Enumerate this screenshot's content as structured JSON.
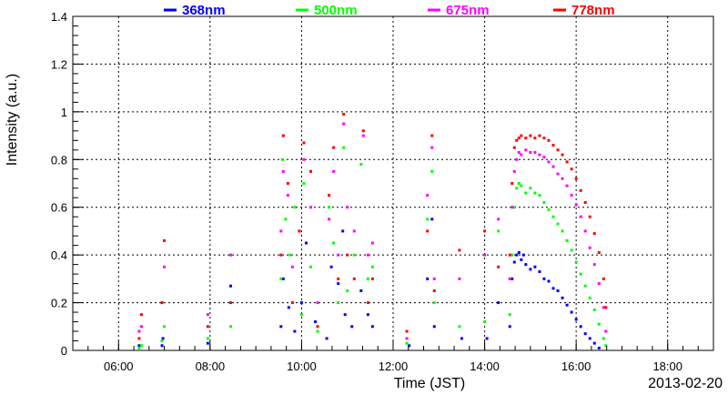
{
  "chart_data": {
    "type": "scatter",
    "title": "",
    "xlabel": "Time (JST)",
    "ylabel": "Intensity (a.u.)",
    "date_label": "2013-02-20",
    "x_unit": "hours (JST)",
    "xlim": [
      5.0,
      19.0
    ],
    "ylim": [
      0,
      1.4
    ],
    "x_ticks": [
      {
        "value": 6,
        "label": "06:00"
      },
      {
        "value": 8,
        "label": "08:00"
      },
      {
        "value": 10,
        "label": "10:00"
      },
      {
        "value": 12,
        "label": "12:00"
      },
      {
        "value": 14,
        "label": "14:00"
      },
      {
        "value": 16,
        "label": "16:00"
      },
      {
        "value": 18,
        "label": "18:00"
      }
    ],
    "y_ticks": [
      {
        "value": 0,
        "label": "0"
      },
      {
        "value": 0.2,
        "label": "0.2"
      },
      {
        "value": 0.4,
        "label": "0.4"
      },
      {
        "value": 0.6,
        "label": "0.6"
      },
      {
        "value": 0.8,
        "label": "0.8"
      },
      {
        "value": 1.0,
        "label": "1"
      },
      {
        "value": 1.2,
        "label": "1.2"
      },
      {
        "value": 1.4,
        "label": "1.4"
      }
    ],
    "grid": true,
    "legend_position": "top",
    "series": [
      {
        "name": "368nm",
        "color": "#0000ff",
        "points": [
          [
            6.45,
            0.02
          ],
          [
            6.95,
            0.02
          ],
          [
            6.97,
            0.05
          ],
          [
            7.95,
            0.03
          ],
          [
            8.45,
            0.27
          ],
          [
            9.55,
            0.1
          ],
          [
            9.6,
            0.3
          ],
          [
            9.72,
            0.18
          ],
          [
            9.85,
            0.08
          ],
          [
            10.0,
            0.2
          ],
          [
            10.1,
            0.45
          ],
          [
            10.3,
            0.12
          ],
          [
            10.55,
            0.05
          ],
          [
            10.65,
            0.35
          ],
          [
            10.8,
            0.28
          ],
          [
            10.9,
            0.5
          ],
          [
            10.95,
            0.15
          ],
          [
            11.1,
            0.1
          ],
          [
            11.3,
            0.25
          ],
          [
            11.45,
            0.15
          ],
          [
            11.55,
            0.1
          ],
          [
            12.35,
            0.02
          ],
          [
            12.75,
            0.3
          ],
          [
            12.85,
            0.55
          ],
          [
            12.9,
            0.1
          ],
          [
            13.5,
            0.05
          ],
          [
            14.05,
            0.05
          ],
          [
            14.3,
            0.2
          ],
          [
            14.55,
            0.1
          ],
          [
            14.6,
            0.3
          ],
          [
            14.65,
            0.37
          ],
          [
            14.7,
            0.4
          ],
          [
            14.75,
            0.41
          ],
          [
            14.8,
            0.38
          ],
          [
            14.85,
            0.4
          ],
          [
            14.9,
            0.36
          ],
          [
            15.0,
            0.34
          ],
          [
            15.1,
            0.35
          ],
          [
            15.2,
            0.33
          ],
          [
            15.3,
            0.3
          ],
          [
            15.4,
            0.29
          ],
          [
            15.5,
            0.26
          ],
          [
            15.6,
            0.25
          ],
          [
            15.7,
            0.22
          ],
          [
            15.8,
            0.19
          ],
          [
            15.9,
            0.16
          ],
          [
            16.0,
            0.13
          ],
          [
            16.1,
            0.1
          ],
          [
            16.2,
            0.07
          ],
          [
            16.3,
            0.05
          ],
          [
            16.4,
            0.03
          ],
          [
            16.5,
            0.01
          ]
        ]
      },
      {
        "name": "500nm",
        "color": "#00ff00",
        "points": [
          [
            6.45,
            0.01
          ],
          [
            6.5,
            0.02
          ],
          [
            6.95,
            0.04
          ],
          [
            7.0,
            0.1
          ],
          [
            7.95,
            0.05
          ],
          [
            8.45,
            0.1
          ],
          [
            9.55,
            0.3
          ],
          [
            9.58,
            0.8
          ],
          [
            9.65,
            0.55
          ],
          [
            9.75,
            0.4
          ],
          [
            9.85,
            0.6
          ],
          [
            10.0,
            0.15
          ],
          [
            10.05,
            0.7
          ],
          [
            10.2,
            0.35
          ],
          [
            10.35,
            0.08
          ],
          [
            10.6,
            0.6
          ],
          [
            10.7,
            0.45
          ],
          [
            10.8,
            0.2
          ],
          [
            10.92,
            0.85
          ],
          [
            11.0,
            0.25
          ],
          [
            11.15,
            0.4
          ],
          [
            11.3,
            0.78
          ],
          [
            11.45,
            0.3
          ],
          [
            11.55,
            0.35
          ],
          [
            12.3,
            0.03
          ],
          [
            12.75,
            0.55
          ],
          [
            12.85,
            0.75
          ],
          [
            12.9,
            0.2
          ],
          [
            13.45,
            0.1
          ],
          [
            14.0,
            0.12
          ],
          [
            14.3,
            0.5
          ],
          [
            14.55,
            0.15
          ],
          [
            14.6,
            0.4
          ],
          [
            14.65,
            0.6
          ],
          [
            14.7,
            0.68
          ],
          [
            14.75,
            0.7
          ],
          [
            14.8,
            0.69
          ],
          [
            14.9,
            0.66
          ],
          [
            15.0,
            0.68
          ],
          [
            15.1,
            0.66
          ],
          [
            15.2,
            0.65
          ],
          [
            15.3,
            0.62
          ],
          [
            15.4,
            0.59
          ],
          [
            15.5,
            0.56
          ],
          [
            15.6,
            0.53
          ],
          [
            15.7,
            0.5
          ],
          [
            15.8,
            0.46
          ],
          [
            15.9,
            0.42
          ],
          [
            16.0,
            0.37
          ],
          [
            16.1,
            0.32
          ],
          [
            16.2,
            0.27
          ],
          [
            16.3,
            0.22
          ],
          [
            16.4,
            0.17
          ],
          [
            16.5,
            0.11
          ],
          [
            16.6,
            0.05
          ],
          [
            16.65,
            0.02
          ]
        ]
      },
      {
        "name": "675nm",
        "color": "#ff00ff",
        "points": [
          [
            6.45,
            0.08
          ],
          [
            6.5,
            0.1
          ],
          [
            6.95,
            0.2
          ],
          [
            7.0,
            0.35
          ],
          [
            7.95,
            0.15
          ],
          [
            8.45,
            0.4
          ],
          [
            9.55,
            0.5
          ],
          [
            9.6,
            0.75
          ],
          [
            9.7,
            0.65
          ],
          [
            9.8,
            0.35
          ],
          [
            9.95,
            0.5
          ],
          [
            10.05,
            0.8
          ],
          [
            10.2,
            0.6
          ],
          [
            10.35,
            0.2
          ],
          [
            10.6,
            0.55
          ],
          [
            10.7,
            0.75
          ],
          [
            10.8,
            0.4
          ],
          [
            10.92,
            0.95
          ],
          [
            11.0,
            0.6
          ],
          [
            11.15,
            0.5
          ],
          [
            11.35,
            0.9
          ],
          [
            11.45,
            0.4
          ],
          [
            11.55,
            0.45
          ],
          [
            12.3,
            0.05
          ],
          [
            12.75,
            0.65
          ],
          [
            12.85,
            0.85
          ],
          [
            12.9,
            0.3
          ],
          [
            13.45,
            0.3
          ],
          [
            14.0,
            0.4
          ],
          [
            14.3,
            0.55
          ],
          [
            14.55,
            0.3
          ],
          [
            14.6,
            0.6
          ],
          [
            14.65,
            0.75
          ],
          [
            14.7,
            0.8
          ],
          [
            14.75,
            0.83
          ],
          [
            14.8,
            0.82
          ],
          [
            14.9,
            0.84
          ],
          [
            15.0,
            0.83
          ],
          [
            15.1,
            0.83
          ],
          [
            15.2,
            0.82
          ],
          [
            15.3,
            0.81
          ],
          [
            15.4,
            0.79
          ],
          [
            15.5,
            0.77
          ],
          [
            15.6,
            0.74
          ],
          [
            15.7,
            0.72
          ],
          [
            15.8,
            0.69
          ],
          [
            15.9,
            0.65
          ],
          [
            16.0,
            0.61
          ],
          [
            16.1,
            0.56
          ],
          [
            16.2,
            0.5
          ],
          [
            16.3,
            0.43
          ],
          [
            16.4,
            0.36
          ],
          [
            16.5,
            0.28
          ],
          [
            16.6,
            0.18
          ],
          [
            16.65,
            0.08
          ]
        ]
      },
      {
        "name": "778nm",
        "color": "#ff0000",
        "points": [
          [
            6.45,
            0.05
          ],
          [
            6.5,
            0.15
          ],
          [
            6.95,
            0.2
          ],
          [
            7.0,
            0.46
          ],
          [
            7.95,
            0.1
          ],
          [
            8.45,
            0.2
          ],
          [
            9.55,
            0.4
          ],
          [
            9.6,
            0.9
          ],
          [
            9.7,
            0.7
          ],
          [
            9.8,
            0.2
          ],
          [
            9.95,
            0.5
          ],
          [
            10.05,
            0.87
          ],
          [
            10.2,
            0.75
          ],
          [
            10.35,
            0.1
          ],
          [
            10.6,
            0.65
          ],
          [
            10.7,
            0.85
          ],
          [
            10.8,
            0.3
          ],
          [
            10.92,
            0.99
          ],
          [
            11.0,
            0.4
          ],
          [
            11.15,
            0.3
          ],
          [
            11.35,
            0.92
          ],
          [
            11.45,
            0.2
          ],
          [
            11.55,
            0.3
          ],
          [
            12.3,
            0.08
          ],
          [
            12.75,
            0.5
          ],
          [
            12.85,
            0.9
          ],
          [
            12.9,
            0.25
          ],
          [
            13.45,
            0.42
          ],
          [
            14.0,
            0.5
          ],
          [
            14.3,
            0.35
          ],
          [
            14.55,
            0.4
          ],
          [
            14.6,
            0.7
          ],
          [
            14.65,
            0.85
          ],
          [
            14.7,
            0.88
          ],
          [
            14.75,
            0.89
          ],
          [
            14.8,
            0.9
          ],
          [
            14.9,
            0.89
          ],
          [
            15.0,
            0.9
          ],
          [
            15.1,
            0.89
          ],
          [
            15.2,
            0.9
          ],
          [
            15.3,
            0.89
          ],
          [
            15.4,
            0.88
          ],
          [
            15.5,
            0.86
          ],
          [
            15.6,
            0.84
          ],
          [
            15.7,
            0.82
          ],
          [
            15.8,
            0.79
          ],
          [
            15.9,
            0.76
          ],
          [
            16.0,
            0.72
          ],
          [
            16.1,
            0.67
          ],
          [
            16.2,
            0.62
          ],
          [
            16.3,
            0.56
          ],
          [
            16.4,
            0.49
          ],
          [
            16.5,
            0.41
          ],
          [
            16.6,
            0.3
          ],
          [
            16.65,
            0.18
          ]
        ]
      }
    ]
  }
}
